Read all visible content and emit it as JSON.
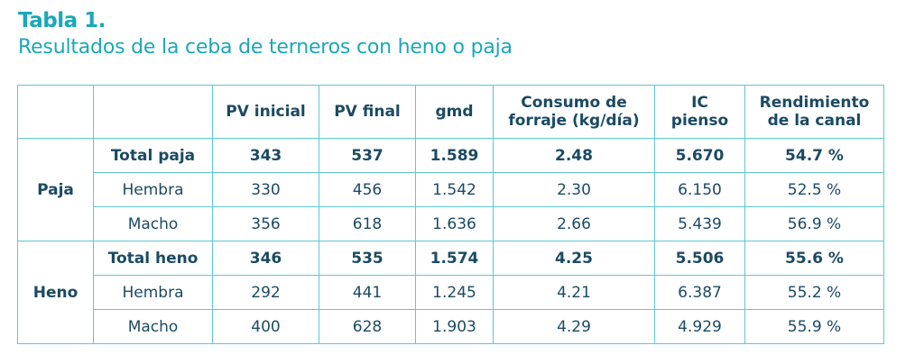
{
  "title": "Tabla 1.",
  "subtitle": "Resultados de la ceba de terneros con heno o paja",
  "table": {
    "headers": [
      "PV inicial",
      "PV final",
      "gmd",
      [
        "Consumo de",
        "forraje (kg/día)"
      ],
      [
        "IC",
        "pienso"
      ],
      [
        "Rendimiento",
        "de la canal"
      ]
    ],
    "groups": [
      {
        "name": "Paja",
        "rows": [
          {
            "label": "Total paja",
            "values": [
              "343",
              "537",
              "1.589",
              "2.48",
              "5.670",
              "54.7 %"
            ]
          },
          {
            "label": "Hembra",
            "values": [
              "330",
              "456",
              "1.542",
              "2.30",
              "6.150",
              "52.5 %"
            ]
          },
          {
            "label": "Macho",
            "values": [
              "356",
              "618",
              "1.636",
              "2.66",
              "5.439",
              "56.9 %"
            ]
          }
        ]
      },
      {
        "name": "Heno",
        "rows": [
          {
            "label": "Total heno",
            "values": [
              "346",
              "535",
              "1.574",
              "4.25",
              "5.506",
              "55.6 %"
            ]
          },
          {
            "label": "Hembra",
            "values": [
              "292",
              "441",
              "1.245",
              "4.21",
              "6.387",
              "55.2 %"
            ]
          },
          {
            "label": "Macho",
            "values": [
              "400",
              "628",
              "1.903",
              "4.29",
              "4.929",
              "55.9 %"
            ]
          }
        ]
      }
    ]
  }
}
